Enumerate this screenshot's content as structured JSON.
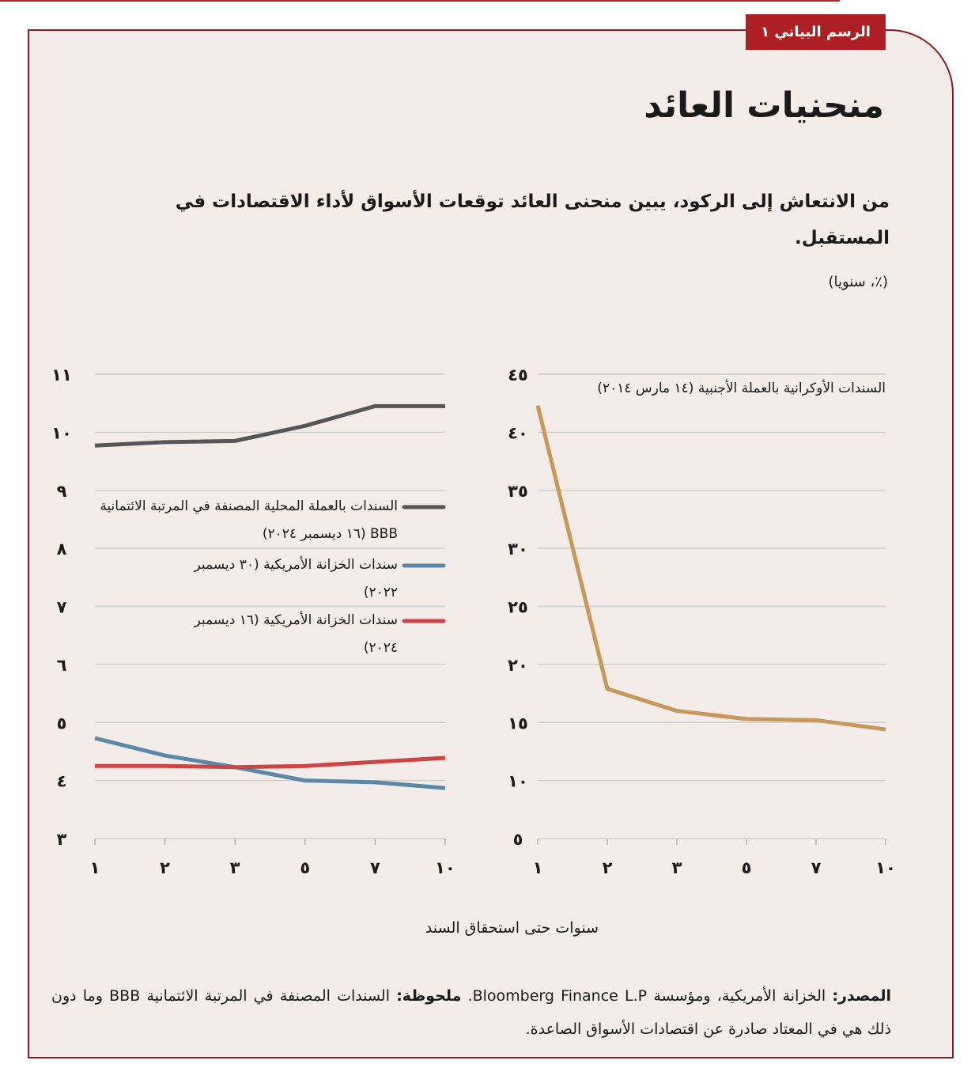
{
  "header": {
    "badge": "الرسم البياني ١",
    "title": "منحنيات العائد",
    "subtitle": "من الانتعاش إلى الركود، يبين منحنى العائد توقعات الأسواق لأداء الاقتصادات في المستقبل.",
    "unit": "(٪، سنويا)"
  },
  "x_axis_title": "سنوات حتى استحقاق السند",
  "chart_data": [
    {
      "type": "line",
      "categories": [
        "١",
        "٢",
        "٣",
        "٥",
        "٧",
        "١٠"
      ],
      "series": [
        {
          "name": "السندات بالعملة المحلية المصنفة في المرتبة الائتمانية BBB (١٦ ديسمبر ٢٠٢٤)",
          "color": "#555658",
          "values": [
            9.77,
            9.83,
            9.85,
            10.11,
            10.45,
            10.45
          ]
        },
        {
          "name": "سندات الخزانة الأمريكية (٣٠ ديسمبر ٢٠٢٢)",
          "color": "#5b88a8",
          "values": [
            4.73,
            4.43,
            4.23,
            4.0,
            3.97,
            3.87
          ]
        },
        {
          "name": "سندات الخزانة الأمريكية (١٦ ديسمبر ٢٠٢٤)",
          "color": "#cc4444",
          "values": [
            4.25,
            4.25,
            4.23,
            4.25,
            4.32,
            4.39
          ]
        }
      ],
      "ylim": [
        3,
        11
      ],
      "yticks": [
        {
          "value": 3,
          "label": "٣"
        },
        {
          "value": 4,
          "label": "٤"
        },
        {
          "value": 5,
          "label": "٥"
        },
        {
          "value": 6,
          "label": "٦"
        },
        {
          "value": 7,
          "label": "٧"
        },
        {
          "value": 8,
          "label": "٨"
        },
        {
          "value": 9,
          "label": "٩"
        },
        {
          "value": 10,
          "label": "١٠"
        },
        {
          "value": 11,
          "label": "١١"
        }
      ],
      "grid": true
    },
    {
      "type": "line",
      "categories": [
        "١",
        "٢",
        "٣",
        "٥",
        "٧",
        "١٠"
      ],
      "series": [
        {
          "name": "السندات الأوكرانية بالعملة الأجنبية (١٤ مارس ٢٠١٤)",
          "color": "#c8985a",
          "values": [
            42.3,
            17.9,
            16.0,
            15.3,
            15.2,
            14.4
          ]
        }
      ],
      "ylim": [
        5,
        45
      ],
      "yticks": [
        {
          "value": 5,
          "label": "٥"
        },
        {
          "value": 10,
          "label": "١٠"
        },
        {
          "value": 15,
          "label": "١٥"
        },
        {
          "value": 20,
          "label": "٢٠"
        },
        {
          "value": 25,
          "label": "٢٥"
        },
        {
          "value": 30,
          "label": "٣٠"
        },
        {
          "value": 35,
          "label": "٣٥"
        },
        {
          "value": 40,
          "label": "٤٠"
        },
        {
          "value": 45,
          "label": "٤٥"
        }
      ],
      "grid": true
    }
  ],
  "footer": {
    "source_label": "المصدر:",
    "source": "الخزانة الأمريكية، ومؤسسة Bloomberg Finance L.P.",
    "note_label": "ملحوظة:",
    "note": "السندات المصنفة في المرتبة الائتمانية BBB وما دون ذلك هي في المعتاد صادرة عن اقتصادات الأسواق الصاعدة."
  }
}
